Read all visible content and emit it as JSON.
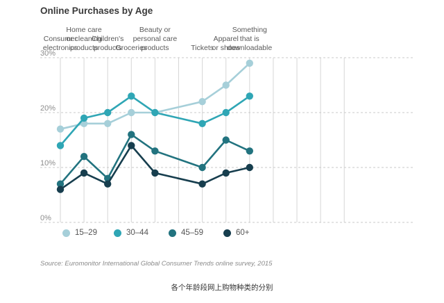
{
  "title": "Online Purchases by Age",
  "source": "Source: Euromonitor International Global Consumer Trends online survey, 2015",
  "caption": "各个年龄段网上购物种类的分别",
  "chart_data": {
    "type": "line",
    "title": "Online Purchases by Age",
    "categories": [
      [
        "Consumer",
        "electronics"
      ],
      [
        "Home care",
        "or cleaning",
        "products"
      ],
      [
        "Children's",
        "products"
      ],
      [
        "Groceries"
      ],
      [
        "Beauty or",
        "personal care",
        "products"
      ],
      [
        "Tickets"
      ],
      [
        "Apparel",
        "or shoes"
      ],
      [
        "Something",
        "that is",
        "downloadable"
      ]
    ],
    "x_positions": [
      0,
      1,
      2,
      3,
      4,
      5,
      6,
      7,
      8,
      9,
      10,
      11,
      12
    ],
    "category_x_index": [
      0,
      1,
      2,
      3,
      4,
      6,
      7,
      8
    ],
    "yticks": [
      "0%",
      "10%",
      "20%",
      "30%"
    ],
    "ylim": [
      0,
      30
    ],
    "grid": "dashed horizontal and solid vertical",
    "legend_position": "bottom-left",
    "series": [
      {
        "name": "15–29",
        "color": "#a6cfd9",
        "values": [
          17,
          18,
          18,
          20,
          20,
          22,
          25,
          29
        ]
      },
      {
        "name": "30–44",
        "color": "#2fa6b5",
        "values": [
          14,
          19,
          20,
          23,
          20,
          18,
          20,
          23
        ]
      },
      {
        "name": "45–59",
        "color": "#22737f",
        "values": [
          7,
          12,
          8,
          16,
          13,
          10,
          15,
          13
        ]
      },
      {
        "name": "60+",
        "color": "#173e4e",
        "values": [
          6,
          9,
          7,
          14,
          9,
          7,
          9,
          10
        ]
      }
    ]
  }
}
